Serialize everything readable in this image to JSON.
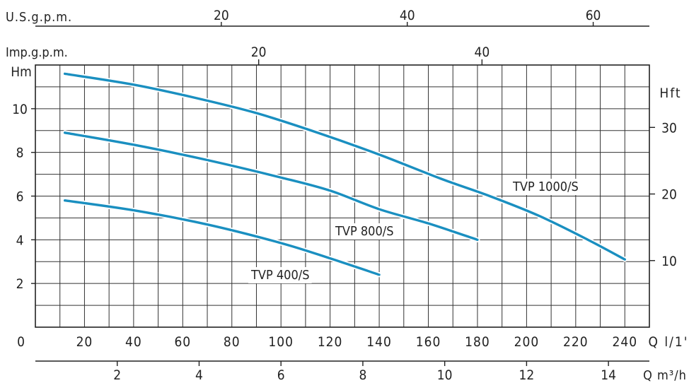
{
  "chart_data": {
    "type": "line",
    "title": "",
    "axes": {
      "x_main": {
        "unit_label": "Q l/1'",
        "ticks": [
          0,
          20,
          40,
          60,
          80,
          100,
          120,
          140,
          160,
          180,
          200,
          220,
          240
        ],
        "range": [
          0,
          250
        ]
      },
      "x_m3h": {
        "unit_label": "Q m³/h",
        "ticks": [
          2,
          4,
          6,
          8,
          10,
          12,
          14
        ]
      },
      "x_usgpm": {
        "unit_label": "U.S.g.p.m.",
        "ticks": [
          20,
          40,
          60
        ]
      },
      "x_impgpm": {
        "unit_label": "Imp.g.p.m.",
        "ticks": [
          20,
          40
        ]
      },
      "y_left": {
        "unit_label": "Hm",
        "ticks": [
          2,
          4,
          6,
          8,
          10
        ],
        "range": [
          0,
          12
        ]
      },
      "y_right": {
        "unit_label": "Hft",
        "ticks": [
          10,
          20,
          30
        ]
      }
    },
    "grid": true,
    "series_color": "#1a8fc0",
    "series": [
      {
        "name": "TVP 1000/S",
        "x": [
          12,
          40,
          65,
          90,
          115,
          140,
          165,
          185,
          205,
          225,
          240
        ],
        "y": [
          11.6,
          11.1,
          10.5,
          9.8,
          8.9,
          7.9,
          6.8,
          6.0,
          5.1,
          4.0,
          3.1
        ]
      },
      {
        "name": "TVP 800/S",
        "x": [
          12,
          40,
          70,
          100,
          120,
          140,
          160,
          180
        ],
        "y": [
          8.9,
          8.35,
          7.65,
          6.85,
          6.25,
          5.4,
          4.75,
          4.0
        ]
      },
      {
        "name": "TVP 400/S",
        "x": [
          12,
          40,
          70,
          100,
          120,
          140
        ],
        "y": [
          5.8,
          5.35,
          4.7,
          3.85,
          3.15,
          2.4
        ]
      }
    ]
  }
}
